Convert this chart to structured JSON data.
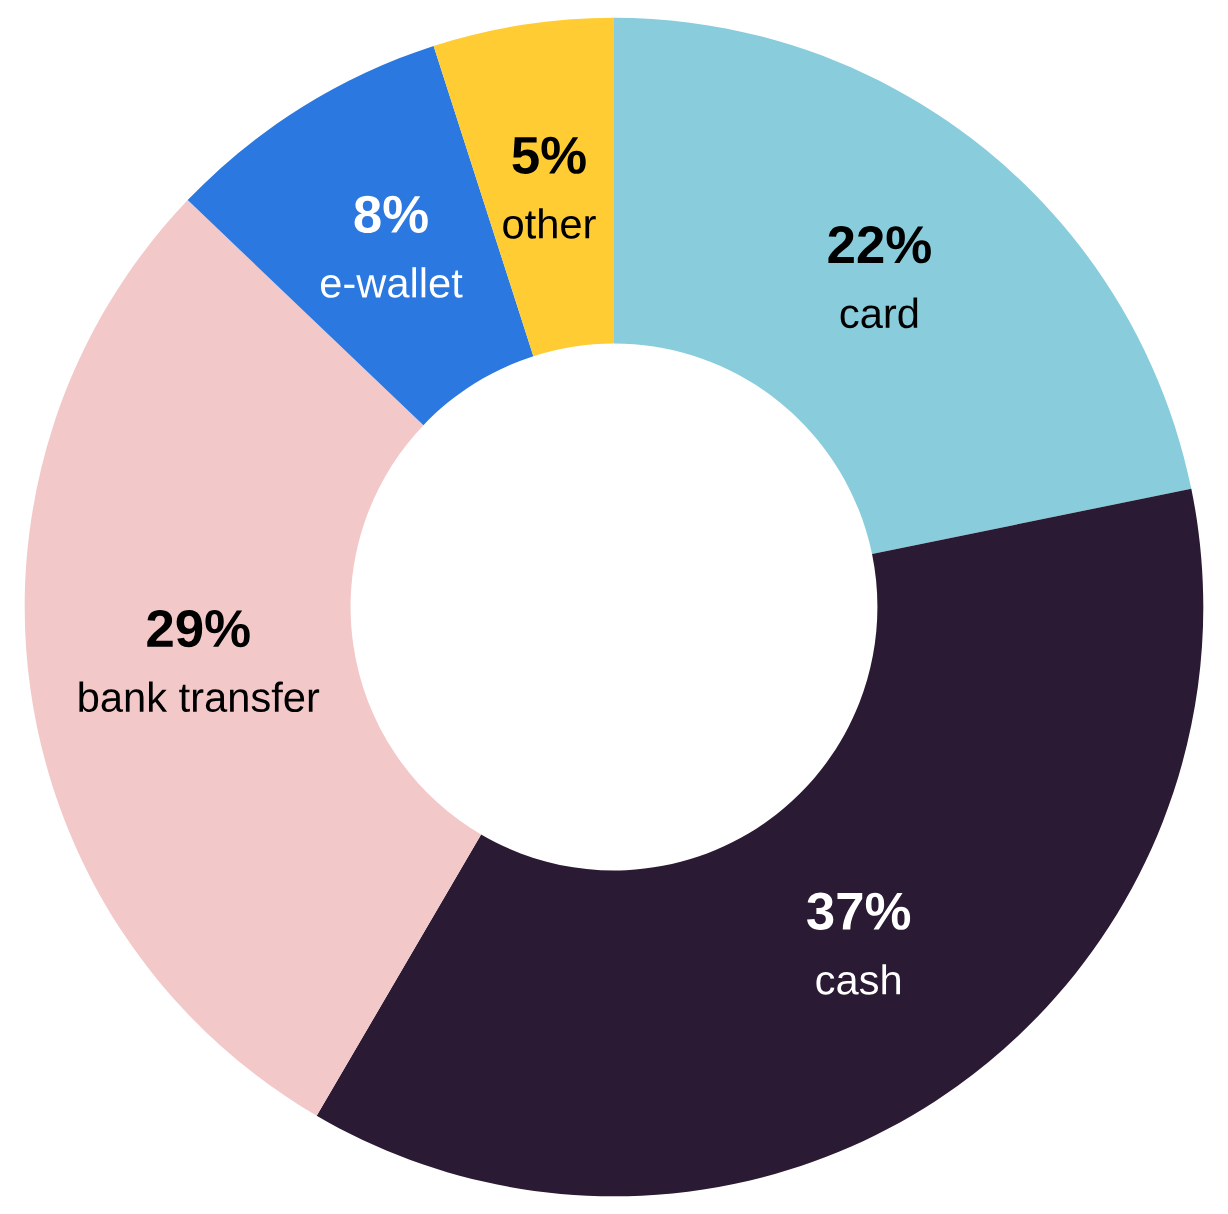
{
  "chart_data": {
    "type": "donut",
    "categories": [
      "card",
      "cash",
      "bank transfer",
      "e-wallet",
      "other"
    ],
    "values": [
      22,
      37,
      29,
      8,
      5
    ],
    "value_labels": [
      "22%",
      "37%",
      "29%",
      "8%",
      "5%"
    ],
    "colors": [
      "#89cddc",
      "#2a1a33",
      "#f3c8c8",
      "#2a78e0",
      "#ffcc33"
    ],
    "legend": false
  }
}
